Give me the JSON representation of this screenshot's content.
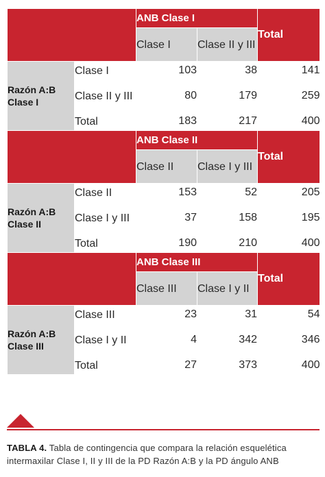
{
  "blocks": [
    {
      "anb_label": "ANB Clase I",
      "total_label": "Total",
      "col_a": "Clase I",
      "col_b": "Clase II y III",
      "razon_label": "Razón A:B Clase I",
      "rows": [
        {
          "label": "Clase I",
          "a": "103",
          "b": "38",
          "total": "141"
        },
        {
          "label": "Clase II y III",
          "a": "80",
          "b": "179",
          "total": "259"
        },
        {
          "label": "Total",
          "a": "183",
          "b": "217",
          "total": "400"
        }
      ]
    },
    {
      "anb_label": "ANB Clase II",
      "total_label": "Total",
      "col_a": "Clase II",
      "col_b": "Clase I y III",
      "razon_label": "Razón A:B Clase II",
      "rows": [
        {
          "label": "Clase II",
          "a": "153",
          "b": "52",
          "total": "205"
        },
        {
          "label": "Clase I y III",
          "a": "37",
          "b": "158",
          "total": "195"
        },
        {
          "label": "Total",
          "a": "190",
          "b": "210",
          "total": "400"
        }
      ]
    },
    {
      "anb_label": "ANB Clase III",
      "total_label": "Total",
      "col_a": "Clase III",
      "col_b": "Clase I y II",
      "razon_label": "Razón A:B Clase III",
      "rows": [
        {
          "label": "Clase III",
          "a": "23",
          "b": "31",
          "total": "54"
        },
        {
          "label": "Clase I y II",
          "a": "4",
          "b": "342",
          "total": "346"
        },
        {
          "label": "Total",
          "a": "27",
          "b": "373",
          "total": "400"
        }
      ]
    }
  ],
  "caption": {
    "label": "TABLA 4.",
    "text": "Tabla de contingencia que compara la relación esquelética intermaxilar Clase I, II y III de la PD Razón A:B y la PD ángulo ANB"
  },
  "colors": {
    "accent": "#c8242f",
    "grey": "#d3d3d3"
  }
}
